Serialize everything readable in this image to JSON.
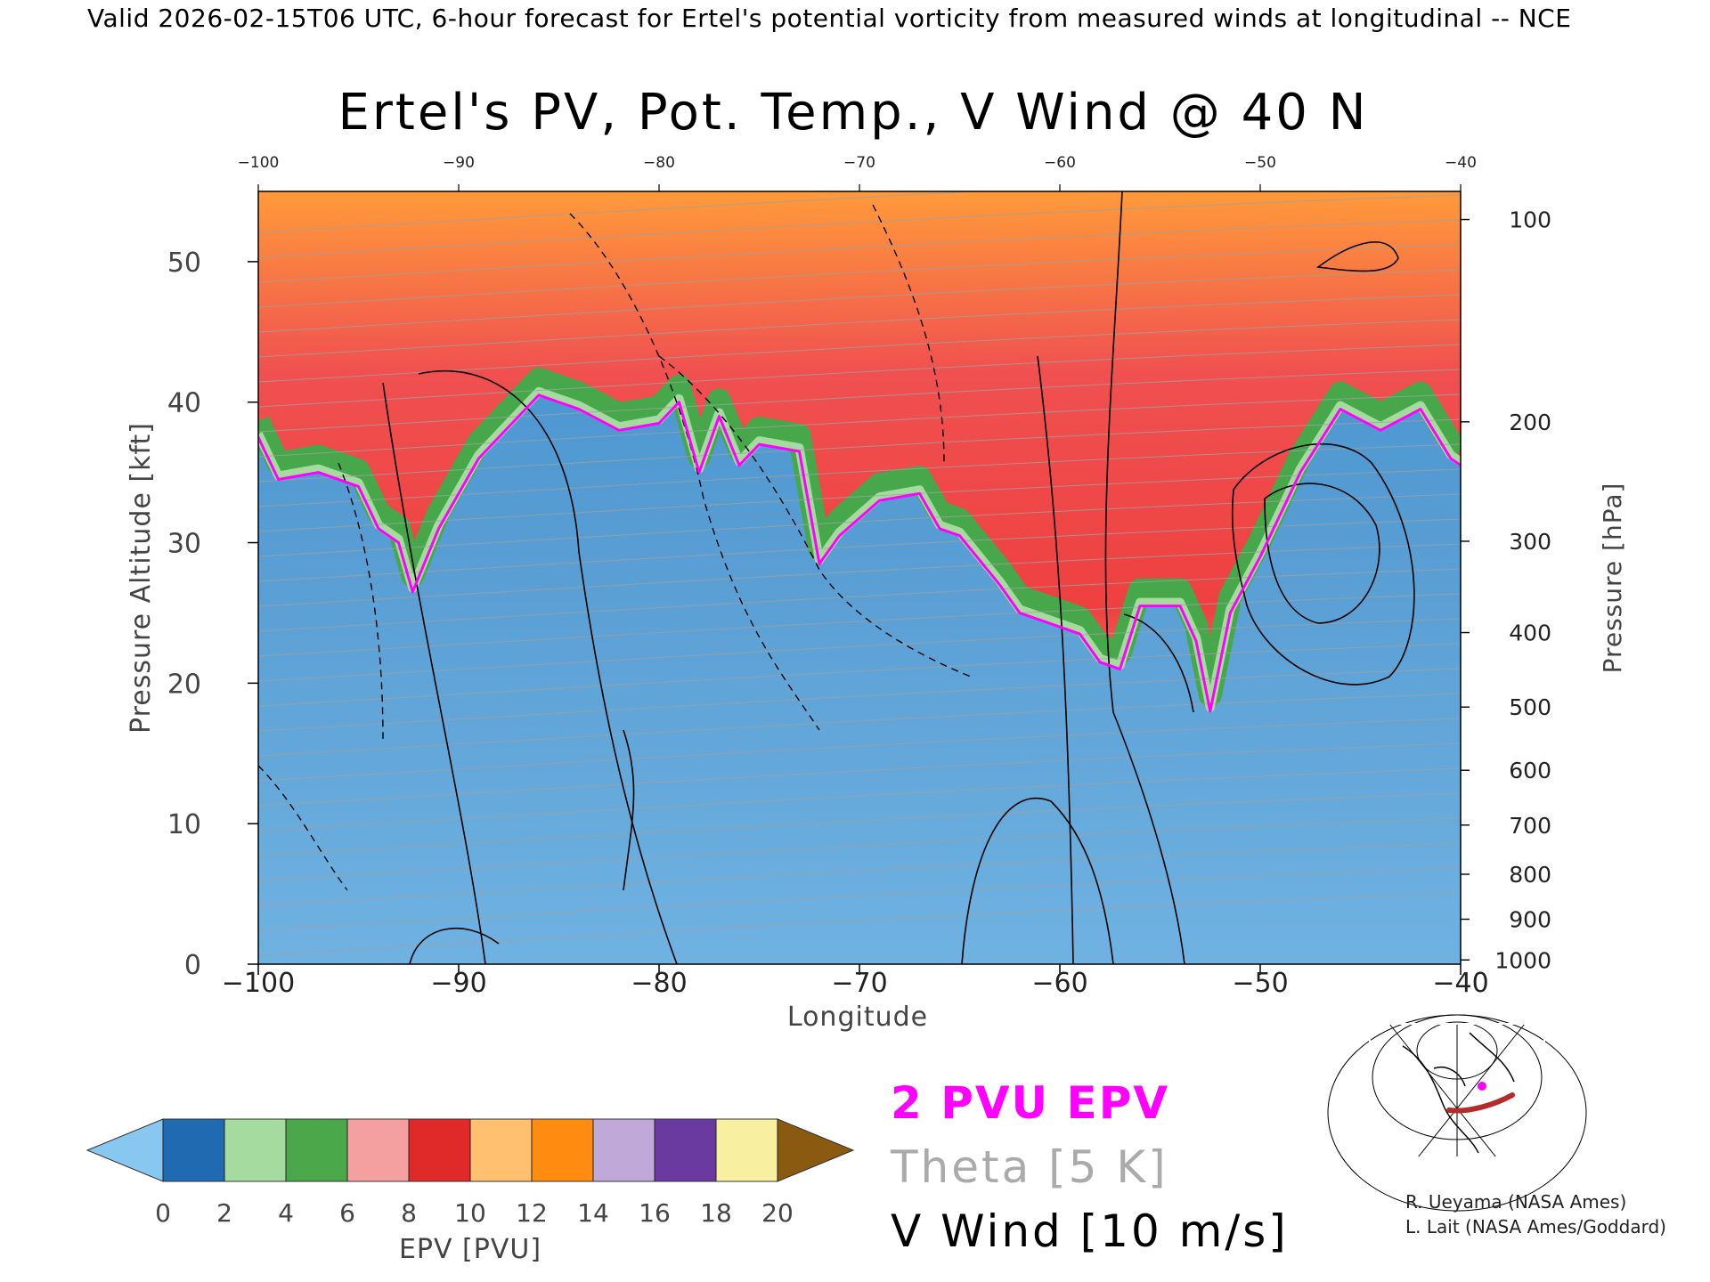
{
  "header": "Valid 2026-02-15T06 UTC, 6-hour forecast for Ertel's potential vorticity from measured winds at longitudinal -- NCE",
  "chart_data": {
    "type": "heatmap",
    "title": "Ertel's PV, Pot. Temp., V Wind @ 40 N",
    "xlabel": "Longitude",
    "ylabel": "Pressure Altitude [kft]",
    "y2label": "Pressure [hPa]",
    "xlim": [
      -100,
      -40
    ],
    "ylim": [
      0,
      55
    ],
    "x_ticks": [
      -100,
      -90,
      -80,
      -70,
      -60,
      -50,
      -40
    ],
    "x_tick_labels": [
      "−100",
      "−90",
      "−80",
      "−70",
      "−60",
      "−50",
      "−40"
    ],
    "y_ticks": [
      0,
      10,
      20,
      30,
      40,
      50
    ],
    "y2_ticks": [
      {
        "label": "100",
        "kft": 53.0
      },
      {
        "label": "200",
        "kft": 38.6
      },
      {
        "label": "300",
        "kft": 30.1
      },
      {
        "label": "400",
        "kft": 23.6
      },
      {
        "label": "500",
        "kft": 18.3
      },
      {
        "label": "600",
        "kft": 13.8
      },
      {
        "label": "700",
        "kft": 9.9
      },
      {
        "label": "800",
        "kft": 6.4
      },
      {
        "label": "900",
        "kft": 3.2
      },
      {
        "label": "1000",
        "kft": 0.3
      }
    ],
    "tropopause_2pvu_kft": [
      [
        -100,
        37.5
      ],
      [
        -99,
        34.5
      ],
      [
        -97,
        35
      ],
      [
        -95,
        34
      ],
      [
        -94,
        31
      ],
      [
        -93,
        30
      ],
      [
        -92.3,
        26.5
      ],
      [
        -91,
        31
      ],
      [
        -89,
        36
      ],
      [
        -87,
        39
      ],
      [
        -86,
        40.5
      ],
      [
        -84,
        39.5
      ],
      [
        -82,
        38
      ],
      [
        -80,
        38.5
      ],
      [
        -79,
        40
      ],
      [
        -78,
        35
      ],
      [
        -77,
        39
      ],
      [
        -76,
        35.5
      ],
      [
        -75,
        37
      ],
      [
        -73,
        36.5
      ],
      [
        -72,
        28.5
      ],
      [
        -71,
        30.5
      ],
      [
        -69,
        33
      ],
      [
        -67,
        33.5
      ],
      [
        -66,
        31
      ],
      [
        -65,
        30.5
      ],
      [
        -63,
        27
      ],
      [
        -62,
        25
      ],
      [
        -61,
        24.5
      ],
      [
        -60,
        24
      ],
      [
        -59,
        23.5
      ],
      [
        -58,
        21.5
      ],
      [
        -57,
        21
      ],
      [
        -56,
        25.5
      ],
      [
        -54,
        25.5
      ],
      [
        -53.2,
        23
      ],
      [
        -52.5,
        18
      ],
      [
        -51.5,
        25
      ],
      [
        -50,
        29
      ],
      [
        -48,
        35
      ],
      [
        -46,
        39.5
      ],
      [
        -44,
        38
      ],
      [
        -42,
        39.5
      ],
      [
        -40.5,
        36
      ],
      [
        -40,
        35.5
      ]
    ],
    "colorbar": {
      "label": "EPV [PVU]",
      "ticks": [
        0,
        2,
        4,
        6,
        8,
        10,
        12,
        14,
        16,
        18,
        20
      ],
      "colors": [
        "#1f6ab0",
        "#a6dba0",
        "#4aa84a",
        "#f4a0a0",
        "#e02a2a",
        "#ffc070",
        "#ff8c10",
        "#c0a8d8",
        "#6a3aa0",
        "#f8f0a0"
      ],
      "under_color": "#88c8f0",
      "over_color": "#8a5a10"
    }
  },
  "legend": {
    "epv": "2 PVU EPV",
    "theta": "Theta [5 K]",
    "wind": "V Wind [10 m/s]"
  },
  "credits": [
    "R. Ueyama (NASA Ames)",
    "L. Lait (NASA Ames/Goddard)"
  ],
  "colors": {
    "epv_line": "#ff00ff",
    "theta_lines": "#a0a0a0",
    "wind_lines": "#000000"
  }
}
